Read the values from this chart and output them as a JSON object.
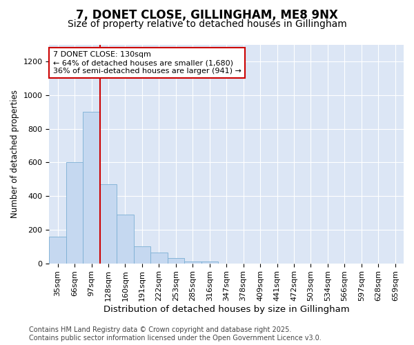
{
  "title1": "7, DONET CLOSE, GILLINGHAM, ME8 9NX",
  "title2": "Size of property relative to detached houses in Gillingham",
  "xlabel": "Distribution of detached houses by size in Gillingham",
  "ylabel": "Number of detached properties",
  "categories": [
    "35sqm",
    "66sqm",
    "97sqm",
    "128sqm",
    "160sqm",
    "191sqm",
    "222sqm",
    "253sqm",
    "285sqm",
    "316sqm",
    "347sqm",
    "378sqm",
    "409sqm",
    "441sqm",
    "472sqm",
    "503sqm",
    "534sqm",
    "566sqm",
    "597sqm",
    "628sqm",
    "659sqm"
  ],
  "values": [
    160,
    600,
    900,
    470,
    290,
    100,
    62,
    30,
    10,
    10,
    0,
    0,
    0,
    0,
    0,
    0,
    0,
    0,
    0,
    0,
    0
  ],
  "bar_color": "#c5d8f0",
  "bar_edge_color": "#7bafd4",
  "vline_x_index": 3,
  "vline_color": "#cc0000",
  "annotation_text": "7 DONET CLOSE: 130sqm\n← 64% of detached houses are smaller (1,680)\n36% of semi-detached houses are larger (941) →",
  "annotation_box_color": "#cc0000",
  "annotation_fill": "#ffffff",
  "ylim": [
    0,
    1300
  ],
  "yticks": [
    0,
    200,
    400,
    600,
    800,
    1000,
    1200
  ],
  "fig_bg_color": "#ffffff",
  "plot_bg_color": "#dce6f5",
  "grid_color": "#ffffff",
  "footer": "Contains HM Land Registry data © Crown copyright and database right 2025.\nContains public sector information licensed under the Open Government Licence v3.0.",
  "title1_fontsize": 12,
  "title2_fontsize": 10,
  "xlabel_fontsize": 9.5,
  "ylabel_fontsize": 8.5,
  "tick_fontsize": 8,
  "annotation_fontsize": 8,
  "footer_fontsize": 7
}
